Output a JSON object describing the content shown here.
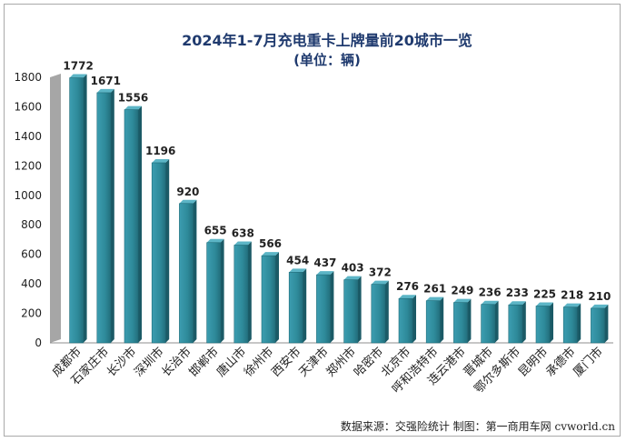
{
  "chart_data": {
    "type": "bar",
    "title": "2024年1-7月充电重卡上牌量前20城市一览",
    "subtitle": "(单位：辆)",
    "categories": [
      "成都市",
      "石家庄市",
      "长沙市",
      "深圳市",
      "长治市",
      "邯郸市",
      "唐山市",
      "徐州市",
      "西安市",
      "天津市",
      "郑州市",
      "哈密市",
      "北京市",
      "呼和浩特市",
      "连云港市",
      "晋城市",
      "鄂尔多斯市",
      "昆明市",
      "承德市",
      "厦门市"
    ],
    "values": [
      1772,
      1671,
      1556,
      1196,
      920,
      655,
      638,
      566,
      454,
      437,
      403,
      372,
      276,
      261,
      249,
      236,
      233,
      225,
      218,
      210
    ],
    "ylim": [
      0,
      1800
    ],
    "yticks": [
      0,
      200,
      400,
      600,
      800,
      1000,
      1200,
      1400,
      1600,
      1800
    ],
    "ytick_labels": [
      "0",
      "200",
      "400",
      "600",
      "800",
      "1000",
      "1200",
      "1400",
      "1600",
      "1800"
    ],
    "bar_color": "#2e8a9a",
    "grid": false,
    "legend": "none"
  },
  "footer": {
    "text": "数据来源：交强险统计   制图：第一商用车网 cvworld.cn"
  }
}
